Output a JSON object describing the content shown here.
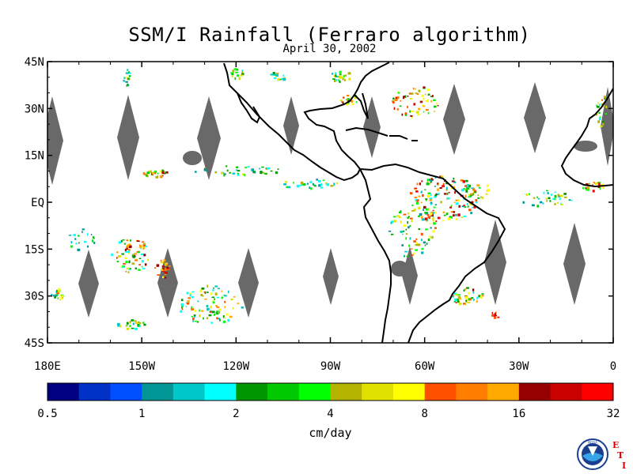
{
  "title": "SSM/I Rainfall (Ferraro algorithm)",
  "subtitle": "April 30, 2002",
  "map": {
    "lon_range": [
      -180,
      0
    ],
    "lat_range": [
      -45,
      45
    ],
    "lat_ticks": [
      {
        "lat": 45,
        "label": "45N"
      },
      {
        "lat": 30,
        "label": "30N"
      },
      {
        "lat": 15,
        "label": "15N"
      },
      {
        "lat": 0,
        "label": "EQ"
      },
      {
        "lat": -15,
        "label": "15S"
      },
      {
        "lat": -30,
        "label": "30S"
      },
      {
        "lat": -45,
        "label": "45S"
      }
    ],
    "lon_ticks": [
      {
        "lon": -180,
        "label": "180E"
      },
      {
        "lon": -150,
        "label": "150W"
      },
      {
        "lon": -120,
        "label": "120W"
      },
      {
        "lon": -90,
        "label": "90W"
      },
      {
        "lon": -60,
        "label": "60W"
      },
      {
        "lon": -30,
        "label": "30W"
      },
      {
        "lon": 0,
        "label": "0"
      }
    ],
    "no_data_color": "#696969",
    "coast_color": "#000000"
  },
  "colorbar": {
    "colors": [
      "#000080",
      "#0032c8",
      "#0050ff",
      "#009696",
      "#00c8c8",
      "#00ffff",
      "#009600",
      "#00c800",
      "#00ff00",
      "#b4b400",
      "#e1e100",
      "#ffff00",
      "#ff5000",
      "#ff7d00",
      "#ffaa00",
      "#960000",
      "#c80000",
      "#ff0000"
    ],
    "tick_labels": [
      "0.5",
      "1",
      "2",
      "4",
      "8",
      "16",
      "32"
    ],
    "units": "cm/day"
  },
  "logo": {
    "noaa_text": "NOAA",
    "etl_letters": [
      "E",
      "T",
      "L"
    ]
  }
}
